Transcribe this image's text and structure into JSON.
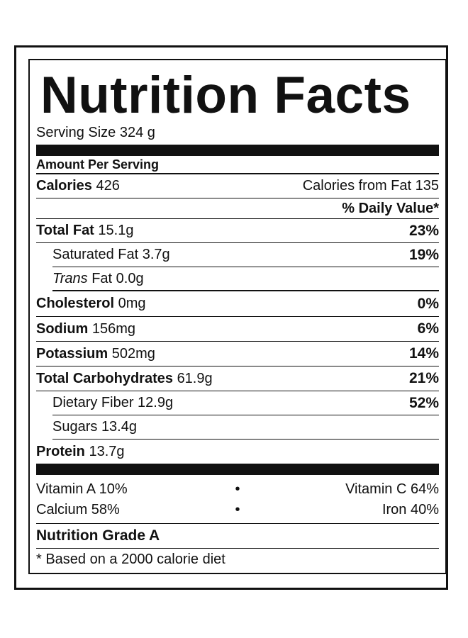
{
  "title": "Nutrition Facts",
  "serving_size": "Serving Size 324 g",
  "amount_per_serving": "Amount Per Serving",
  "calories": {
    "label": "Calories",
    "value": "426",
    "from_fat": "Calories from Fat 135"
  },
  "daily_value_header": "% Daily Value*",
  "nutrients": [
    {
      "label": "Total Fat",
      "amount": "15.1g",
      "dv": "23%"
    },
    {
      "label": "Saturated Fat",
      "amount": "3.7g",
      "dv": "19%"
    },
    {
      "label": "Trans",
      "label_rest": "Fat",
      "amount": "0.0g",
      "dv": ""
    },
    {
      "label": "Cholesterol",
      "amount": "0mg",
      "dv": "0%"
    },
    {
      "label": "Sodium",
      "amount": "156mg",
      "dv": "6%"
    },
    {
      "label": "Potassium",
      "amount": "502mg",
      "dv": "14%"
    },
    {
      "label": "Total Carbohydrates",
      "amount": "61.9g",
      "dv": "21%"
    },
    {
      "label": "Dietary Fiber",
      "amount": "12.9g",
      "dv": "52%"
    },
    {
      "label": "Sugars",
      "amount": "13.4g",
      "dv": ""
    },
    {
      "label": "Protein",
      "amount": "13.7g",
      "dv": ""
    }
  ],
  "vitamins": [
    {
      "left": "Vitamin A 10%",
      "sep": "•",
      "right": "Vitamin C 64%"
    },
    {
      "left": "Calcium 58%",
      "sep": "•",
      "right": "Iron 40%"
    }
  ],
  "grade": "Nutrition Grade A",
  "footnote": "* Based on a 2000 calorie diet"
}
